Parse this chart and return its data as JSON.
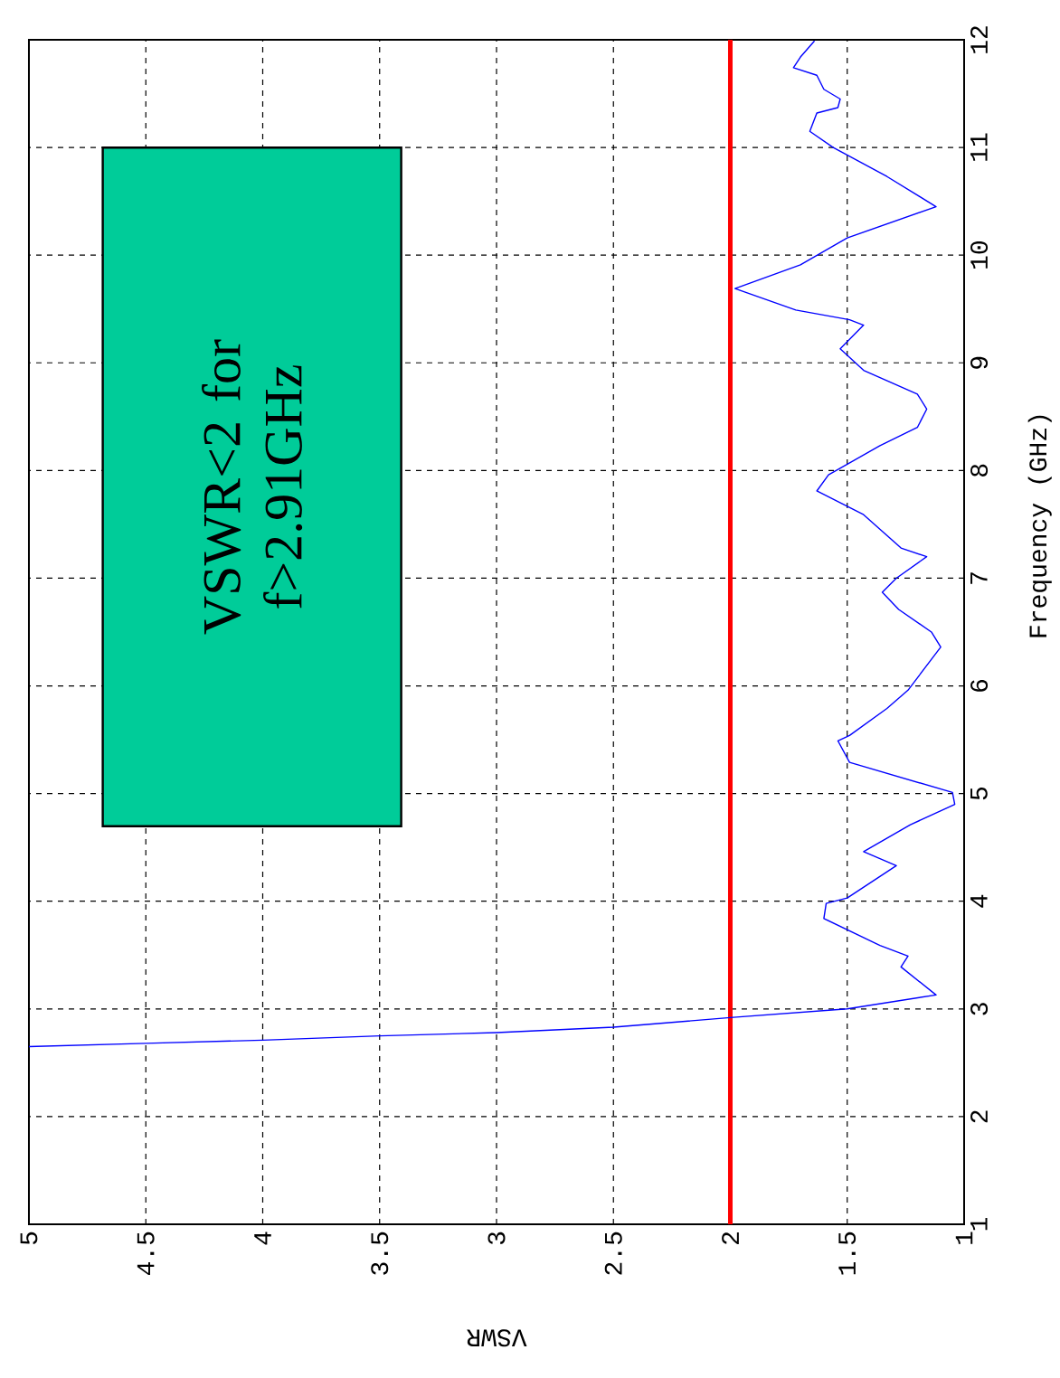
{
  "chart_data": {
    "type": "line",
    "xlabel": "VSWR",
    "ylabel": "Frequency (GHz)",
    "x": [
      5,
      4.5,
      4,
      3.5,
      3,
      2.5,
      2,
      1.5,
      1.12,
      1.27,
      1.24,
      1.36,
      1.6,
      1.59,
      1.5,
      1.29,
      1.43,
      1.23,
      1.04,
      1.05,
      1.49,
      1.54,
      1.49,
      1.33,
      1.24,
      1.1,
      1.14,
      1.28,
      1.35,
      1.29,
      1.16,
      1.27,
      1.43,
      1.63,
      1.58,
      1.36,
      1.2,
      1.16,
      1.2,
      1.43,
      1.53,
      1.43,
      1.49,
      1.72,
      1.98,
      1.7,
      1.5,
      1.12,
      1.33,
      1.56,
      1.66,
      1.63,
      1.54,
      1.53,
      1.6,
      1.63,
      1.73,
      1.7,
      1.64
    ],
    "values": [
      2.65,
      2.68,
      2.71,
      2.75,
      2.78,
      2.83,
      2.92,
      3.0,
      3.13,
      3.39,
      3.49,
      3.59,
      3.84,
      3.98,
      4.03,
      4.33,
      4.46,
      4.71,
      4.9,
      5.01,
      5.29,
      5.49,
      5.54,
      5.79,
      5.96,
      6.36,
      6.5,
      6.71,
      6.87,
      7.0,
      7.2,
      7.28,
      7.59,
      7.81,
      7.96,
      8.23,
      8.4,
      8.57,
      8.71,
      8.93,
      9.13,
      9.35,
      9.4,
      9.49,
      9.69,
      9.91,
      10.16,
      10.45,
      10.73,
      11.0,
      11.15,
      11.32,
      11.37,
      11.45,
      11.54,
      11.67,
      11.74,
      11.84,
      11.99
    ],
    "color": "#0000ff",
    "xlim": [
      5,
      1
    ],
    "ylim": [
      1,
      12
    ],
    "xticks": [
      5,
      4.5,
      4,
      3.5,
      3,
      2.5,
      2,
      1.5,
      1
    ],
    "yticks": [
      1,
      2,
      3,
      4,
      5,
      6,
      7,
      8,
      9,
      10,
      11,
      12
    ],
    "grid": true,
    "ref_lines": [
      {
        "axis": "x",
        "value": 2,
        "color": "#ff0000"
      }
    ],
    "annotations": [
      "VSWR<2 for f>2.91GHz"
    ]
  }
}
